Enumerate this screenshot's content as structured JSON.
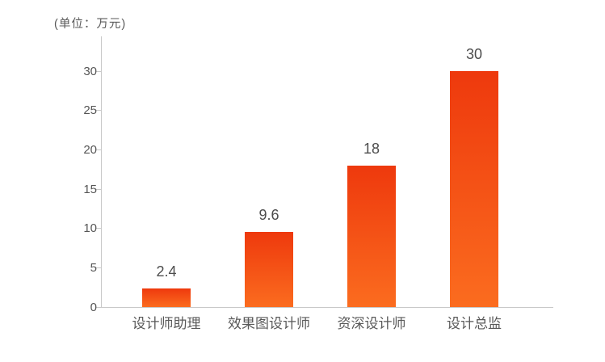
{
  "chart_data": {
    "type": "bar",
    "title": "",
    "unit_label": "(单位：万元)",
    "categories": [
      "设计师助理",
      "效果图设计师",
      "资深设计师",
      "设计总监"
    ],
    "values": [
      2.4,
      9.6,
      18,
      30
    ],
    "value_labels": [
      "2.4",
      "9.6",
      "18",
      "30"
    ],
    "xlabel": "",
    "ylabel": "",
    "ylim": [
      0,
      30
    ],
    "yticks": [
      0,
      5,
      10,
      15,
      20,
      25,
      30
    ],
    "grid": false,
    "legend": false,
    "colors": {
      "bar_gradient_top": "#ee390d",
      "bar_gradient_bottom": "#fb6c1f",
      "axis": "#c9c9c9",
      "text": "#555555",
      "background": "#ffffff"
    }
  }
}
